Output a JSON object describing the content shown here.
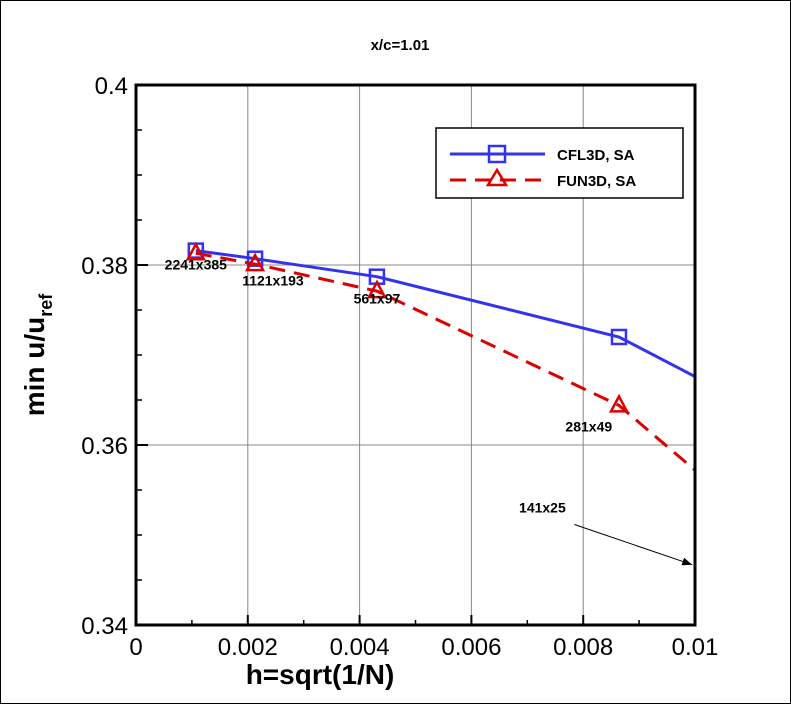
{
  "chart_data": {
    "type": "line",
    "title": "x/c=1.01",
    "xlabel": "h=sqrt(1/N)",
    "ylabel": {
      "main": "min u/u",
      "subscript": "ref"
    },
    "xlim": [
      0,
      0.01
    ],
    "ylim": [
      0.34,
      0.4
    ],
    "xticks": [
      0,
      0.002,
      0.004,
      0.006,
      0.008,
      0.01
    ],
    "xtick_labels": [
      "0",
      "0.002",
      "0.004",
      "0.006",
      "0.008",
      "0.01"
    ],
    "yticks": [
      0.34,
      0.36,
      0.38,
      0.4
    ],
    "ytick_labels": [
      "0.34",
      "0.36",
      "0.38",
      "0.4"
    ],
    "grid": true,
    "legend_position": "top-right",
    "series": [
      {
        "name": "CFL3D, SA",
        "color": "#3333ee",
        "style": "solid",
        "marker": "square",
        "x": [
          0.00107,
          0.00213,
          0.00431,
          0.00864,
          0.01
        ],
        "y": [
          0.3816,
          0.3807,
          0.3787,
          0.372,
          0.3676
        ],
        "marked": [
          true,
          true,
          true,
          true,
          false
        ]
      },
      {
        "name": "FUN3D, SA",
        "color": "#dd0000",
        "style": "dashed",
        "marker": "triangle",
        "x": [
          0.00107,
          0.00213,
          0.00431,
          0.00864,
          0.01
        ],
        "y": [
          0.3813,
          0.3801,
          0.3771,
          0.3644,
          0.3572
        ],
        "marked": [
          true,
          true,
          true,
          true,
          false
        ]
      }
    ],
    "annotations": [
      {
        "text": "2241x385",
        "x": 0.00107,
        "y": 0.3795
      },
      {
        "text": "1121x193",
        "x": 0.00245,
        "y": 0.3777
      },
      {
        "text": "561x97",
        "x": 0.00431,
        "y": 0.3757
      },
      {
        "text": "281x49",
        "x": 0.0081,
        "y": 0.3615
      },
      {
        "text": "141x25",
        "x": 0.00727,
        "y": 0.3525,
        "arrow_to": [
          0.00995,
          0.3467
        ]
      }
    ]
  }
}
